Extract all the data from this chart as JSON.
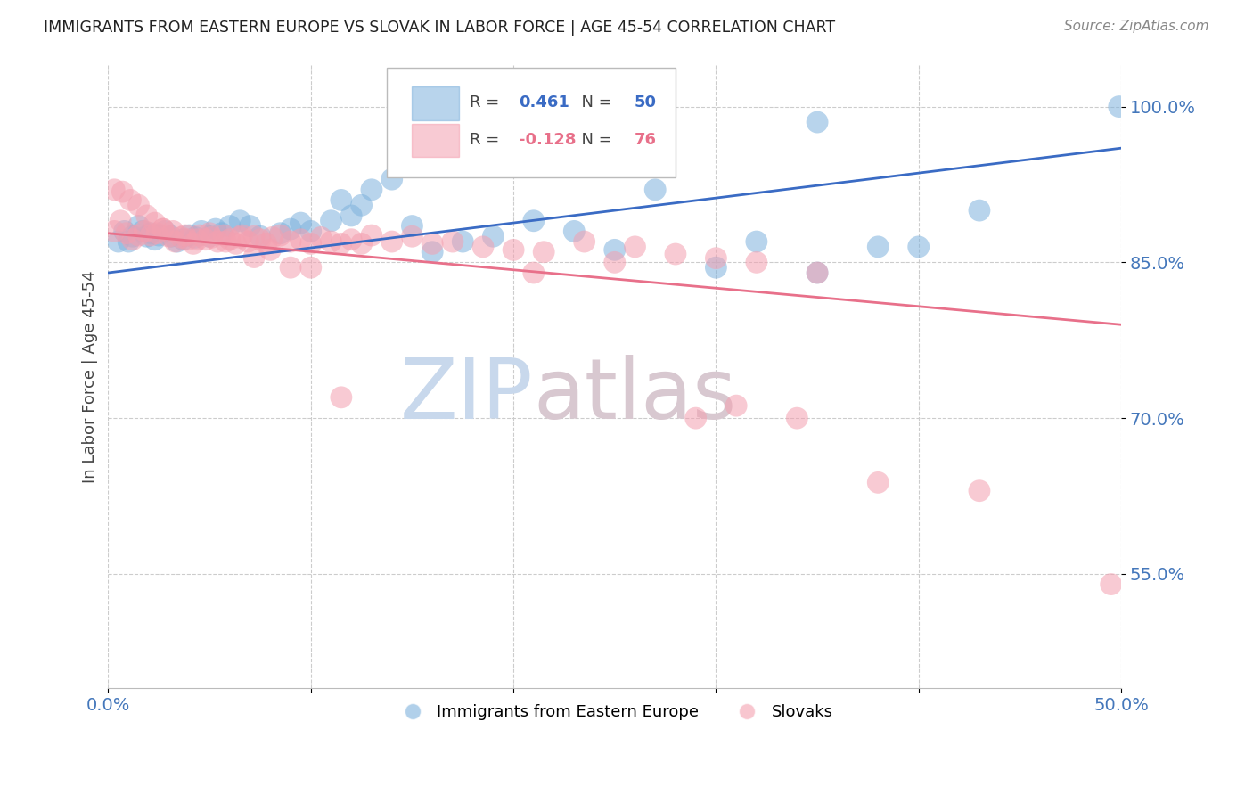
{
  "title": "IMMIGRANTS FROM EASTERN EUROPE VS SLOVAK IN LABOR FORCE | AGE 45-54 CORRELATION CHART",
  "source": "Source: ZipAtlas.com",
  "ylabel": "In Labor Force | Age 45-54",
  "xlim": [
    0.0,
    0.5
  ],
  "ylim": [
    0.44,
    1.04
  ],
  "yticks": [
    0.55,
    0.7,
    0.85,
    1.0
  ],
  "ytick_labels": [
    "55.0%",
    "70.0%",
    "85.0%",
    "100.0%"
  ],
  "xticks": [
    0.0,
    0.1,
    0.2,
    0.3,
    0.4,
    0.5
  ],
  "xtick_labels": [
    "0.0%",
    "",
    "",
    "",
    "",
    "50.0%"
  ],
  "blue_R": 0.461,
  "blue_N": 50,
  "pink_R": -0.128,
  "pink_N": 76,
  "blue_color": "#7EB2DD",
  "pink_color": "#F4A0B0",
  "blue_line_color": "#3A6BC4",
  "pink_line_color": "#E8708A",
  "title_color": "#222222",
  "axis_label_color": "#444444",
  "tick_label_color": "#4477BB",
  "grid_color": "#CCCCCC",
  "watermark_zip_color": "#C8D8EC",
  "watermark_atlas_color": "#D8C8D0",
  "blue_scatter_x": [
    0.005,
    0.008,
    0.01,
    0.012,
    0.015,
    0.017,
    0.019,
    0.021,
    0.023,
    0.025,
    0.028,
    0.031,
    0.034,
    0.037,
    0.04,
    0.043,
    0.046,
    0.05,
    0.053,
    0.056,
    0.06,
    0.065,
    0.07,
    0.075,
    0.085,
    0.09,
    0.095,
    0.1,
    0.11,
    0.115,
    0.12,
    0.125,
    0.13,
    0.14,
    0.15,
    0.16,
    0.175,
    0.19,
    0.21,
    0.23,
    0.25,
    0.27,
    0.3,
    0.32,
    0.35,
    0.38,
    0.4,
    0.43,
    0.35,
    0.499
  ],
  "blue_scatter_y": [
    0.87,
    0.88,
    0.87,
    0.875,
    0.885,
    0.88,
    0.875,
    0.878,
    0.872,
    0.876,
    0.88,
    0.875,
    0.87,
    0.872,
    0.876,
    0.874,
    0.88,
    0.875,
    0.882,
    0.878,
    0.885,
    0.89,
    0.885,
    0.875,
    0.878,
    0.882,
    0.888,
    0.88,
    0.89,
    0.91,
    0.895,
    0.905,
    0.92,
    0.93,
    0.885,
    0.86,
    0.87,
    0.875,
    0.89,
    0.88,
    0.862,
    0.92,
    0.845,
    0.87,
    0.84,
    0.865,
    0.865,
    0.9,
    0.985,
    1.0
  ],
  "pink_scatter_x": [
    0.003,
    0.006,
    0.009,
    0.012,
    0.015,
    0.018,
    0.021,
    0.024,
    0.027,
    0.03,
    0.033,
    0.036,
    0.039,
    0.042,
    0.045,
    0.048,
    0.051,
    0.054,
    0.057,
    0.06,
    0.063,
    0.066,
    0.069,
    0.072,
    0.075,
    0.078,
    0.081,
    0.085,
    0.09,
    0.095,
    0.1,
    0.105,
    0.11,
    0.115,
    0.12,
    0.125,
    0.13,
    0.14,
    0.15,
    0.16,
    0.17,
    0.185,
    0.2,
    0.215,
    0.235,
    0.26,
    0.28,
    0.3,
    0.32,
    0.35,
    0.003,
    0.007,
    0.011,
    0.015,
    0.019,
    0.023,
    0.027,
    0.032,
    0.038,
    0.044,
    0.05,
    0.058,
    0.065,
    0.072,
    0.08,
    0.09,
    0.1,
    0.115,
    0.21,
    0.25,
    0.29,
    0.31,
    0.34,
    0.38,
    0.43,
    0.495
  ],
  "pink_scatter_y": [
    0.88,
    0.89,
    0.878,
    0.872,
    0.876,
    0.88,
    0.876,
    0.878,
    0.882,
    0.875,
    0.87,
    0.874,
    0.872,
    0.868,
    0.876,
    0.872,
    0.874,
    0.87,
    0.876,
    0.872,
    0.868,
    0.876,
    0.87,
    0.875,
    0.872,
    0.868,
    0.874,
    0.876,
    0.87,
    0.872,
    0.868,
    0.874,
    0.87,
    0.868,
    0.872,
    0.868,
    0.876,
    0.87,
    0.875,
    0.868,
    0.87,
    0.865,
    0.862,
    0.86,
    0.87,
    0.865,
    0.858,
    0.854,
    0.85,
    0.84,
    0.92,
    0.918,
    0.91,
    0.905,
    0.895,
    0.888,
    0.882,
    0.88,
    0.876,
    0.872,
    0.878,
    0.87,
    0.874,
    0.855,
    0.862,
    0.845,
    0.845,
    0.72,
    0.84,
    0.85,
    0.7,
    0.712,
    0.7,
    0.638,
    0.63,
    0.54
  ]
}
